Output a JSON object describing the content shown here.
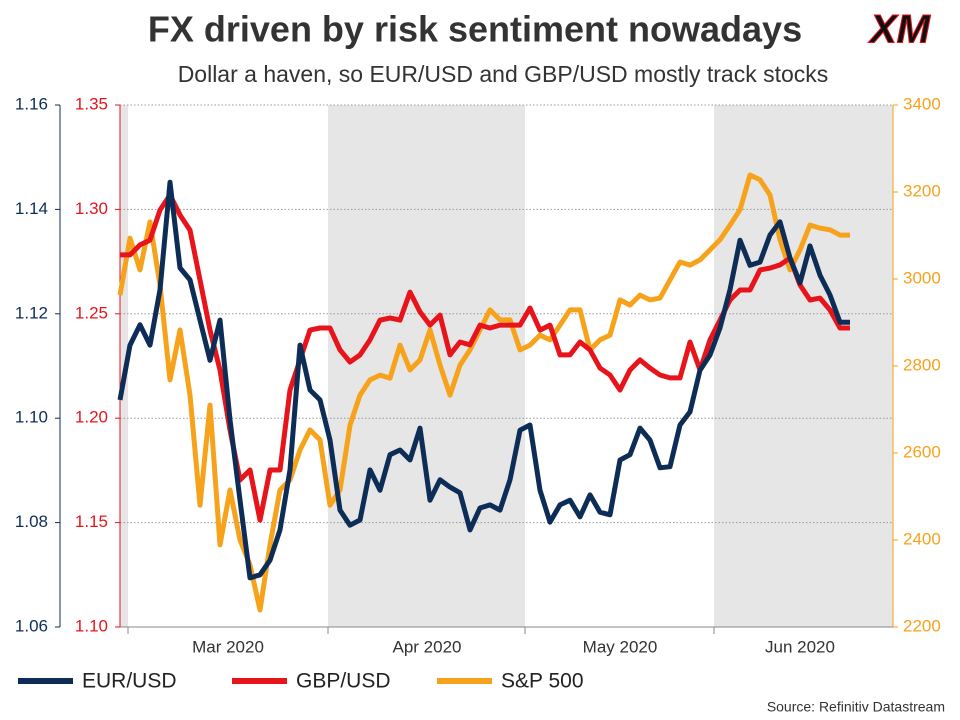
{
  "chart_data": {
    "type": "line",
    "title": "FX driven by risk sentiment nowadays",
    "subtitle": "Dollar a haven, so EUR/USD and GBP/USD mostly track stocks",
    "logo": "XM",
    "source": "Source: Refinitiv Datastream",
    "x_labels": [
      "Mar 2020",
      "Apr 2020",
      "May 2020",
      "Jun 2020"
    ],
    "grid": true,
    "ylim": [
      1.06,
      1.16
    ],
    "yticks": [
      1.06,
      1.08,
      {
        "value": 1.1,
        "label": "1.10"
      },
      1.12,
      1.14,
      1.16
    ],
    "y2lim": [
      1.1,
      1.35
    ],
    "y2ticks": [
      {
        "value": 1.1,
        "label": "1.10"
      },
      1.15,
      {
        "value": 1.2,
        "label": "1.20"
      },
      1.25,
      {
        "value": 1.3,
        "label": "1.30"
      },
      1.35
    ],
    "y3lim": [
      2200,
      3400
    ],
    "y3ticks": [
      2200,
      2400,
      2600,
      2800,
      3000,
      3200,
      3400
    ],
    "series": [
      {
        "name": "EUR/USD",
        "color": "#0d2d57",
        "axis": "y",
        "values": [
          1.1035,
          1.114,
          1.1179,
          1.114,
          1.1246,
          1.1452,
          1.1288,
          1.1265,
          1.1188,
          1.1111,
          1.1188,
          1.0997,
          1.0843,
          1.0694,
          1.07,
          1.0728,
          1.0786,
          1.0901,
          1.114,
          1.1054,
          1.1035,
          1.0958,
          1.0824,
          1.0795,
          1.0805,
          1.0901,
          1.0862,
          1.093,
          1.0939,
          1.092,
          1.0981,
          1.0843,
          1.0882,
          1.0868,
          1.0857,
          1.0786,
          1.0828,
          1.0834,
          1.0824,
          1.0882,
          1.0977,
          1.0987,
          1.0862,
          1.0801,
          1.0834,
          1.0843,
          1.0811,
          1.0853,
          1.082,
          1.0815,
          1.092,
          1.093,
          1.0981,
          1.0958,
          1.0905,
          1.0907,
          1.0987,
          1.1012,
          1.1092,
          1.1121,
          1.1173,
          1.1246,
          1.1341,
          1.1293,
          1.1299,
          1.1351,
          1.1376,
          1.1307,
          1.1259,
          1.133,
          1.1274,
          1.1236,
          1.1184,
          1.1184
        ]
      },
      {
        "name": "GBP/USD",
        "color": "#e8141b",
        "axis": "y2",
        "values": [
          1.2782,
          1.2782,
          1.283,
          1.2853,
          1.2997,
          1.3069,
          1.2973,
          1.2901,
          1.2662,
          1.2422,
          1.2231,
          1.1943,
          1.1704,
          1.1752,
          1.1512,
          1.1752,
          1.1752,
          1.2135,
          1.2279,
          1.2422,
          1.2432,
          1.2432,
          1.2327,
          1.2269,
          1.2303,
          1.2375,
          1.247,
          1.248,
          1.247,
          1.2604,
          1.2509,
          1.2446,
          1.2494,
          1.2303,
          1.2365,
          1.2351,
          1.2446,
          1.2432,
          1.2446,
          1.2446,
          1.2446,
          1.2528,
          1.2422,
          1.2446,
          1.2303,
          1.2303,
          1.2365,
          1.2327,
          1.224,
          1.2207,
          1.2135,
          1.2231,
          1.2279,
          1.224,
          1.2207,
          1.2193,
          1.2193,
          1.2365,
          1.2231,
          1.2375,
          1.247,
          1.2566,
          1.2614,
          1.2614,
          1.271,
          1.2719,
          1.2734,
          1.2767,
          1.2638,
          1.2566,
          1.2575,
          1.2518,
          1.2432,
          1.2432
        ]
      },
      {
        "name": "S&P 500",
        "color": "#f7a21b",
        "axis": "y3",
        "values": [
          2963,
          3094,
          3021,
          3131,
          2986,
          2768,
          2883,
          2733,
          2480,
          2710,
          2389,
          2515,
          2400,
          2343,
          2239,
          2389,
          2515,
          2538,
          2607,
          2653,
          2630,
          2480,
          2515,
          2664,
          2733,
          2768,
          2779,
          2772,
          2848,
          2791,
          2814,
          2883,
          2802,
          2733,
          2802,
          2837,
          2883,
          2929,
          2906,
          2906,
          2837,
          2848,
          2871,
          2860,
          2894,
          2929,
          2929,
          2837,
          2860,
          2871,
          2952,
          2940,
          2963,
          2952,
          2956,
          2998,
          3039,
          3032,
          3044,
          3067,
          3090,
          3124,
          3159,
          3239,
          3228,
          3193,
          3090,
          3021,
          3067,
          3124,
          3117,
          3113,
          3101,
          3101
        ]
      }
    ]
  }
}
